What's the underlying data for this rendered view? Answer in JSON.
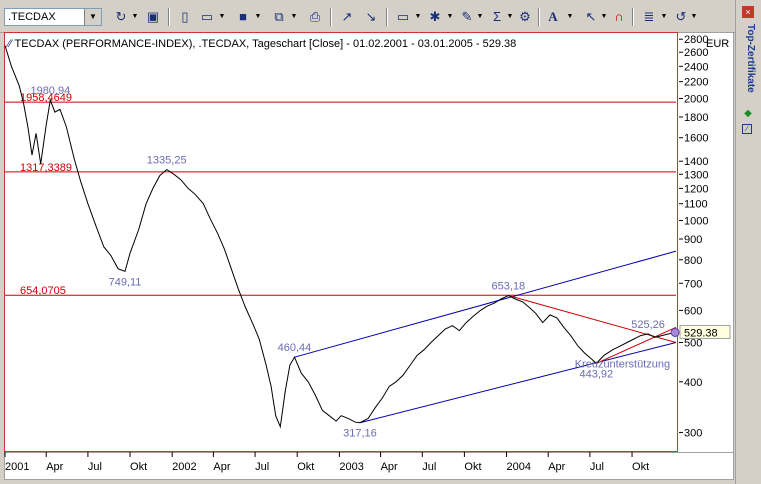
{
  "toolbar": {
    "symbol_value": ".TECDAX",
    "icons": [
      "refresh-icon",
      "save-icon",
      "new-icon",
      "open-icon",
      "disk-icon",
      "copy-icon",
      "print-icon",
      "chart-icon",
      "chart2-icon",
      "window-icon",
      "indicator-icon",
      "draw-icon",
      "sum-icon",
      "settings-icon",
      "text-icon",
      "cursor-icon",
      "magnet-icon",
      "notes-icon",
      "undo-icon"
    ]
  },
  "chart": {
    "title": "TECDAX (PERFORMANCE-INDEX), .TECDAX, Tageschart [Close] - 01.02.2001 - 03.01.2005 - 529.38",
    "currency": "EUR",
    "last_value": "529.38"
  },
  "side": {
    "title": "Top-Zertifikate"
  },
  "chart_data": {
    "type": "line",
    "title": "TECDAX (PERFORMANCE-INDEX), .TECDAX, Tageschart [Close] - 01.02.2001 - 03.01.2005 - 529.38",
    "scale": "log",
    "ylim": [
      270,
      2900
    ],
    "y_ticks": [
      2800,
      2600,
      2400,
      2200,
      2000,
      1800,
      1600,
      1400,
      1300,
      1200,
      1100,
      1000,
      900,
      800,
      700,
      600,
      500,
      400,
      300
    ],
    "x_ticks": [
      "2001",
      "Apr",
      "Jul",
      "Okt",
      "2002",
      "Apr",
      "Jul",
      "Okt",
      "2003",
      "Apr",
      "Jul",
      "Okt",
      "2004",
      "Apr",
      "Jul",
      "Okt"
    ],
    "x_tick_dates": [
      "2001-01-01",
      "2001-04-01",
      "2001-07-01",
      "2001-10-01",
      "2002-01-01",
      "2002-04-01",
      "2002-07-01",
      "2002-10-01",
      "2003-01-01",
      "2003-04-01",
      "2003-07-01",
      "2003-10-01",
      "2004-01-01",
      "2004-04-01",
      "2004-07-01",
      "2004-10-01"
    ],
    "xlim": [
      "2001-01-01",
      "2005-01-05"
    ],
    "series": [
      {
        "values": [
          [
            "2001-01-01",
            2700
          ],
          [
            "2001-01-15",
            2400
          ],
          [
            "2001-02-01",
            2150
          ],
          [
            "2001-02-10",
            1960
          ],
          [
            "2001-02-20",
            1700
          ],
          [
            "2001-03-01",
            1450
          ],
          [
            "2001-03-10",
            1640
          ],
          [
            "2001-03-20",
            1380
          ],
          [
            "2001-04-01",
            1720
          ],
          [
            "2001-04-10",
            1980
          ],
          [
            "2001-04-20",
            1850
          ],
          [
            "2001-05-01",
            1880
          ],
          [
            "2001-05-15",
            1700
          ],
          [
            "2001-06-01",
            1420
          ],
          [
            "2001-06-15",
            1250
          ],
          [
            "2001-07-01",
            1100
          ],
          [
            "2001-07-20",
            960
          ],
          [
            "2001-08-05",
            860
          ],
          [
            "2001-08-20",
            820
          ],
          [
            "2001-09-05",
            760
          ],
          [
            "2001-09-20",
            749
          ],
          [
            "2001-10-01",
            830
          ],
          [
            "2001-10-20",
            950
          ],
          [
            "2001-11-05",
            1100
          ],
          [
            "2001-11-20",
            1200
          ],
          [
            "2001-12-05",
            1290
          ],
          [
            "2001-12-20",
            1335
          ],
          [
            "2002-01-05",
            1300
          ],
          [
            "2002-01-20",
            1260
          ],
          [
            "2002-02-05",
            1200
          ],
          [
            "2002-02-20",
            1160
          ],
          [
            "2002-03-10",
            1100
          ],
          [
            "2002-03-25",
            1010
          ],
          [
            "2002-04-10",
            930
          ],
          [
            "2002-04-25",
            850
          ],
          [
            "2002-05-10",
            760
          ],
          [
            "2002-05-25",
            680
          ],
          [
            "2002-06-10",
            610
          ],
          [
            "2002-06-25",
            560
          ],
          [
            "2002-07-10",
            510
          ],
          [
            "2002-07-25",
            440
          ],
          [
            "2002-08-05",
            390
          ],
          [
            "2002-08-15",
            330
          ],
          [
            "2002-08-25",
            310
          ],
          [
            "2002-09-05",
            380
          ],
          [
            "2002-09-15",
            440
          ],
          [
            "2002-09-25",
            460
          ],
          [
            "2002-10-10",
            420
          ],
          [
            "2002-10-25",
            400
          ],
          [
            "2002-11-10",
            370
          ],
          [
            "2002-11-25",
            340
          ],
          [
            "2002-12-10",
            330
          ],
          [
            "2002-12-25",
            320
          ],
          [
            "2003-01-05",
            330
          ],
          [
            "2003-01-20",
            325
          ],
          [
            "2003-02-05",
            318
          ],
          [
            "2003-02-15",
            317
          ],
          [
            "2003-03-05",
            325
          ],
          [
            "2003-03-20",
            345
          ],
          [
            "2003-04-05",
            365
          ],
          [
            "2003-04-20",
            390
          ],
          [
            "2003-05-05",
            400
          ],
          [
            "2003-05-20",
            415
          ],
          [
            "2003-06-05",
            440
          ],
          [
            "2003-06-20",
            465
          ],
          [
            "2003-07-05",
            480
          ],
          [
            "2003-07-20",
            500
          ],
          [
            "2003-08-05",
            520
          ],
          [
            "2003-08-20",
            540
          ],
          [
            "2003-09-05",
            550
          ],
          [
            "2003-09-20",
            535
          ],
          [
            "2003-10-05",
            560
          ],
          [
            "2003-10-20",
            580
          ],
          [
            "2003-11-05",
            600
          ],
          [
            "2003-11-20",
            615
          ],
          [
            "2003-12-05",
            625
          ],
          [
            "2003-12-20",
            640
          ],
          [
            "2004-01-05",
            653
          ],
          [
            "2004-01-20",
            640
          ],
          [
            "2004-02-05",
            630
          ],
          [
            "2004-02-20",
            610
          ],
          [
            "2004-03-05",
            590
          ],
          [
            "2004-03-20",
            560
          ],
          [
            "2004-04-05",
            585
          ],
          [
            "2004-04-20",
            575
          ],
          [
            "2004-05-05",
            545
          ],
          [
            "2004-05-20",
            520
          ],
          [
            "2004-06-05",
            490
          ],
          [
            "2004-06-20",
            470
          ],
          [
            "2004-07-05",
            455
          ],
          [
            "2004-07-15",
            444
          ],
          [
            "2004-08-01",
            465
          ],
          [
            "2004-08-20",
            480
          ],
          [
            "2004-09-05",
            490
          ],
          [
            "2004-09-20",
            500
          ],
          [
            "2004-10-05",
            510
          ],
          [
            "2004-10-20",
            520
          ],
          [
            "2004-11-05",
            525
          ],
          [
            "2004-11-20",
            515
          ],
          [
            "2004-12-05",
            520
          ],
          [
            "2004-12-20",
            525
          ],
          [
            "2005-01-03",
            529.38
          ]
        ]
      }
    ],
    "horizontal_levels": [
      {
        "value": 1958.4649,
        "label": "1958,4649"
      },
      {
        "value": 1317.3389,
        "label": "1317,3389"
      },
      {
        "value": 654.0705,
        "label": "654,0705"
      }
    ],
    "annotations": [
      {
        "date": "2001-04-10",
        "value": 1980.94,
        "label": "1980,94"
      },
      {
        "date": "2001-12-20",
        "value": 1335.25,
        "label": "1335,25"
      },
      {
        "date": "2001-09-20",
        "value": 749.11,
        "label": "749,11"
      },
      {
        "date": "2002-09-25",
        "value": 460.44,
        "label": "460,44"
      },
      {
        "date": "2003-02-15",
        "value": 317.16,
        "label": "317,16"
      },
      {
        "date": "2004-01-05",
        "value": 653.18,
        "label": "653,18"
      },
      {
        "date": "2004-11-05",
        "value": 525.26,
        "label": "525,26"
      },
      {
        "date": "2004-07-15",
        "value": 443.92,
        "label": "443,92"
      },
      {
        "date": "2004-09-10",
        "value": 470,
        "label": "Kreuzunterstützung"
      }
    ],
    "trendlines": [
      {
        "color": "#0000aa",
        "from": [
          "2002-09-25",
          460
        ],
        "to": [
          "2005-01-05",
          840
        ]
      },
      {
        "color": "#0000aa",
        "from": [
          "2003-02-15",
          317
        ],
        "to": [
          "2005-01-05",
          500
        ]
      },
      {
        "color": "#cc0000",
        "from": [
          "2004-01-05",
          653
        ],
        "to": [
          "2005-01-05",
          500
        ]
      },
      {
        "color": "#cc0000",
        "from": [
          "2004-07-15",
          444
        ],
        "to": [
          "2005-01-05",
          545
        ]
      }
    ]
  }
}
